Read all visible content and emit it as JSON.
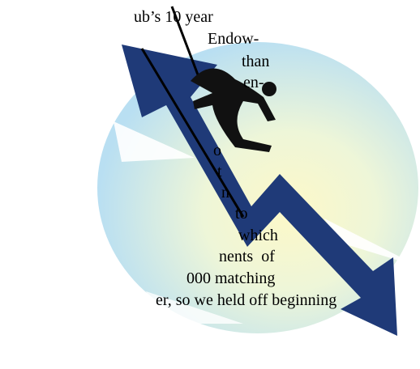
{
  "text_lines": [
    "ub’s 10 year",
    "Endow-",
    "than",
    "en-",
    "o",
    "t",
    "n",
    "to",
    "which",
    "nents  of",
    "000 matching",
    "er, so we held off beginning"
  ]
}
